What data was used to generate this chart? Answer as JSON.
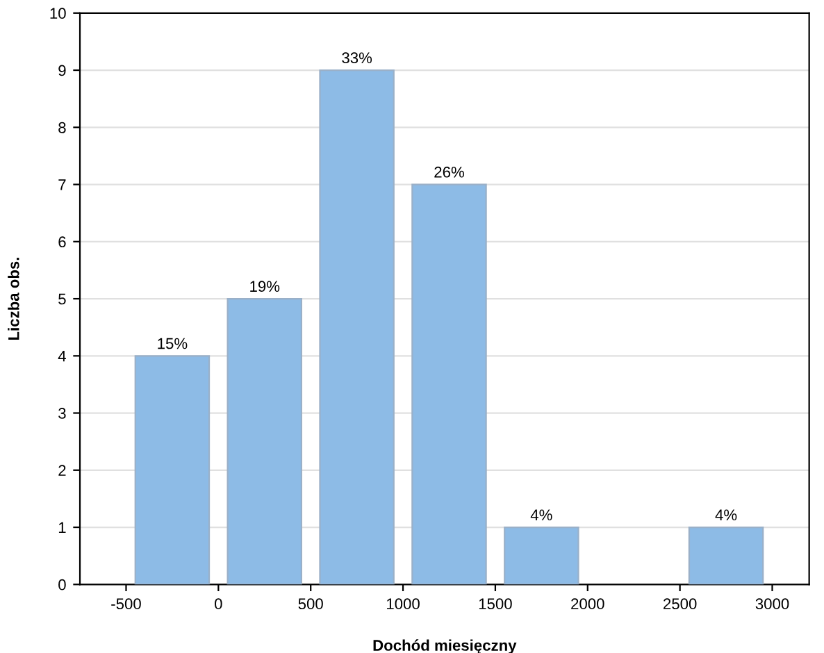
{
  "chart_data": {
    "type": "histogram",
    "xlabel": "Dochód miesięczny",
    "ylabel": "Liczba obs.",
    "bins": [
      -500,
      0,
      500,
      1000,
      1500,
      2000,
      2500,
      3000
    ],
    "values": [
      4,
      5,
      9,
      7,
      1,
      0,
      1
    ],
    "annotations": [
      {
        "text": "15%",
        "x": -250,
        "y": 4
      },
      {
        "text": "19%",
        "x": 250,
        "y": 5
      },
      {
        "text": "33%",
        "x": 750,
        "y": 9
      },
      {
        "text": "26%",
        "x": 1250,
        "y": 7
      },
      {
        "text": "4%",
        "x": 1750,
        "y": 1
      },
      {
        "text": "4%",
        "x": 2750,
        "y": 1
      }
    ],
    "color": "#8dbbe6",
    "xlim": [
      -750,
      3200
    ],
    "xticks": [
      -500,
      0,
      500,
      1000,
      1500,
      2000,
      2500,
      3000
    ],
    "ylim": [
      0,
      10
    ],
    "yticks": [
      0,
      1,
      2,
      3,
      4,
      5,
      6,
      7,
      8,
      9,
      10
    ],
    "grid": "y"
  }
}
